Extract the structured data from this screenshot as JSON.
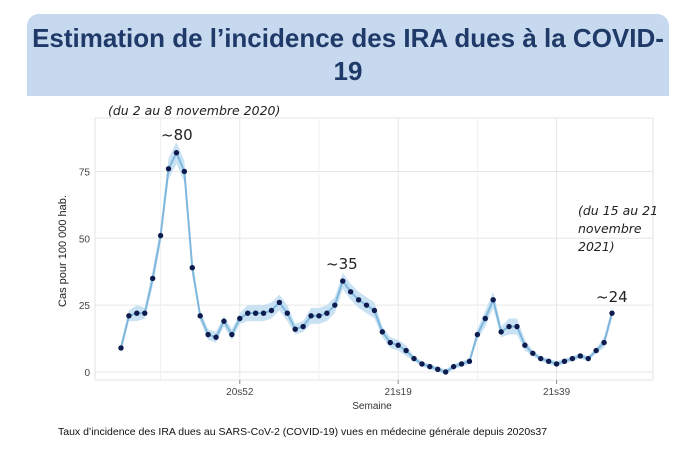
{
  "slide": {
    "title": "Estimation de l’incidence des IRA dues à la COVID-19",
    "caption": "Taux d’incidence des IRA dues au SARS-CoV-2 (COVID-19) vues en médecine générale depuis 2020s37"
  },
  "annotations": {
    "start_period": "(du 2 au 8 novembre 2020)",
    "end_period": [
      "(du 15 au 21",
      "novembre",
      "2021)"
    ],
    "peak1": "~80",
    "peak2": "~35",
    "last": "~24"
  },
  "colors": {
    "line": "#7fb8dc",
    "band": "#c9e2f3",
    "point": "#0d1b4f",
    "title": "#1f3a68",
    "header": "#c7d9ee"
  },
  "chart_data": {
    "type": "line",
    "xlabel": "Semaine",
    "ylabel": "Cas pour 100 000 hab.",
    "ylim": [
      -3,
      95
    ],
    "yticks": [
      0,
      25,
      50,
      75
    ],
    "xtick_labels": [
      "20s52",
      "21s19",
      "21s39"
    ],
    "x": [
      "2020s37",
      "2020s38",
      "2020s39",
      "2020s40",
      "2020s41",
      "2020s42",
      "2020s43",
      "2020s44",
      "2020s45",
      "2020s46",
      "2020s47",
      "2020s48",
      "2020s49",
      "2020s50",
      "2020s51",
      "2020s52",
      "2020s53",
      "2021s01",
      "2021s02",
      "2021s03",
      "2021s04",
      "2021s05",
      "2021s06",
      "2021s07",
      "2021s08",
      "2021s09",
      "2021s10",
      "2021s11",
      "2021s12",
      "2021s13",
      "2021s14",
      "2021s15",
      "2021s16",
      "2021s17",
      "2021s18",
      "2021s19",
      "2021s20",
      "2021s21",
      "2021s22",
      "2021s23",
      "2021s24",
      "2021s25",
      "2021s26",
      "2021s27",
      "2021s28",
      "2021s29",
      "2021s30",
      "2021s31",
      "2021s32",
      "2021s33",
      "2021s34",
      "2021s35",
      "2021s36",
      "2021s37",
      "2021s38",
      "2021s39",
      "2021s40",
      "2021s41",
      "2021s42",
      "2021s43",
      "2021s44",
      "2021s45",
      "2021s46"
    ],
    "series": [
      {
        "values": [
          9,
          21,
          22,
          22,
          35,
          51,
          76,
          82,
          75,
          39,
          21,
          14,
          13,
          19,
          14,
          20,
          22,
          22,
          22,
          23,
          26,
          22,
          16,
          17,
          21,
          21,
          22,
          25,
          34,
          30,
          27,
          25,
          23,
          15,
          11,
          10,
          8,
          5,
          3,
          2,
          1,
          0,
          2,
          3,
          4,
          14,
          20,
          27,
          15,
          17,
          17,
          10,
          7,
          5,
          4,
          3,
          4,
          5,
          6,
          5,
          8,
          11,
          22
        ],
        "lower": [
          7,
          19,
          19,
          20,
          32,
          48,
          72,
          78,
          71,
          36,
          19,
          12,
          11,
          17,
          12,
          18,
          19,
          19,
          19,
          20,
          23,
          19,
          14,
          15,
          18,
          18,
          19,
          22,
          31,
          27,
          24,
          22,
          20,
          13,
          9,
          8,
          6,
          4,
          2,
          1,
          0,
          -1,
          1,
          2,
          3,
          12,
          17,
          24,
          13,
          14,
          14,
          8,
          6,
          4,
          3,
          2,
          3,
          4,
          5,
          4,
          7,
          9,
          20
        ],
        "upper": [
          11,
          23,
          25,
          24,
          38,
          54,
          80,
          86,
          79,
          42,
          23,
          16,
          15,
          21,
          16,
          22,
          25,
          25,
          25,
          26,
          29,
          25,
          18,
          19,
          24,
          24,
          25,
          28,
          37,
          33,
          30,
          28,
          26,
          17,
          13,
          12,
          10,
          6,
          4,
          3,
          2,
          1,
          3,
          4,
          5,
          16,
          23,
          30,
          17,
          20,
          20,
          12,
          8,
          6,
          5,
          4,
          5,
          6,
          7,
          6,
          9,
          13,
          24
        ]
      }
    ]
  }
}
